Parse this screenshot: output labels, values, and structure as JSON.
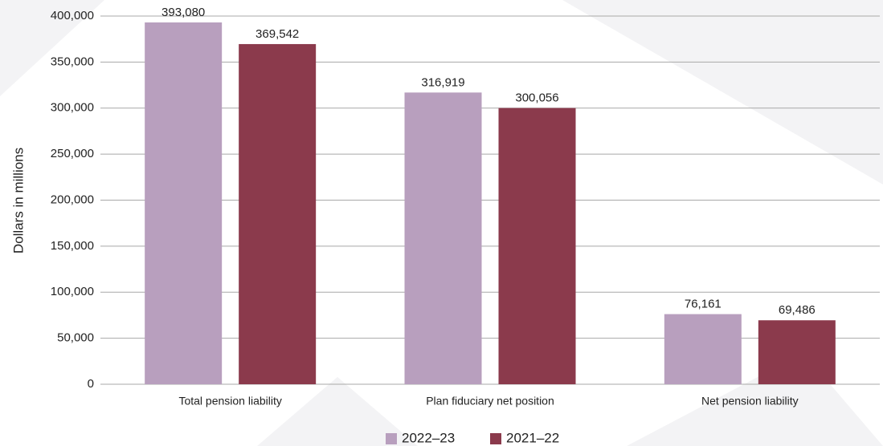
{
  "chart_data": {
    "type": "bar",
    "y_label": "Dollars in millions",
    "categories": [
      "Total pension liability",
      "Plan fiduciary net position",
      "Net pension liability"
    ],
    "series": [
      {
        "name": "2022–23",
        "color": "#b89fbe",
        "values": [
          393080,
          316919,
          76161
        ],
        "value_labels": [
          "393,080",
          "316,919",
          "76,161"
        ]
      },
      {
        "name": "2021–22",
        "color": "#8b3a4c",
        "values": [
          369542,
          300056,
          69486
        ],
        "value_labels": [
          "369,542",
          "300,056",
          "69,486"
        ]
      }
    ],
    "ylim": [
      0,
      400000
    ],
    "yticks": [
      0,
      {
        "value": 50000,
        "label": "50,000"
      },
      {
        "value": 100000,
        "label": "100,000"
      },
      {
        "value": 150000,
        "label": "150,000"
      },
      {
        "value": 200000,
        "label": "200,000"
      },
      {
        "value": 250000,
        "label": "250,000"
      },
      {
        "value": 300000,
        "label": "300,000"
      },
      {
        "value": 350000,
        "label": "350,000"
      },
      {
        "value": 400000,
        "label": "400,000"
      }
    ],
    "grid": true,
    "legend": "bottom"
  }
}
